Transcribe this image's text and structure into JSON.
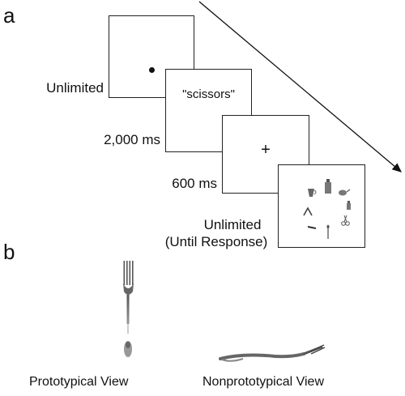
{
  "panel_a": {
    "letter": "a",
    "frames": [
      {
        "duration_label": "Unlimited",
        "content_type": "dot"
      },
      {
        "duration_label": "2,000 ms",
        "content_type": "word",
        "word": "\"scissors\""
      },
      {
        "duration_label": "600 ms",
        "content_type": "fixation",
        "symbol": "+"
      },
      {
        "duration_label_line1": "Unlimited",
        "duration_label_line2": "(Until Response)",
        "content_type": "object-array"
      }
    ],
    "time_arrow": "diagonal-arrow"
  },
  "panel_b": {
    "letter": "b",
    "prototypical_caption": "Prototypical View",
    "nonprototypical_caption": "Nonprototypical View"
  }
}
